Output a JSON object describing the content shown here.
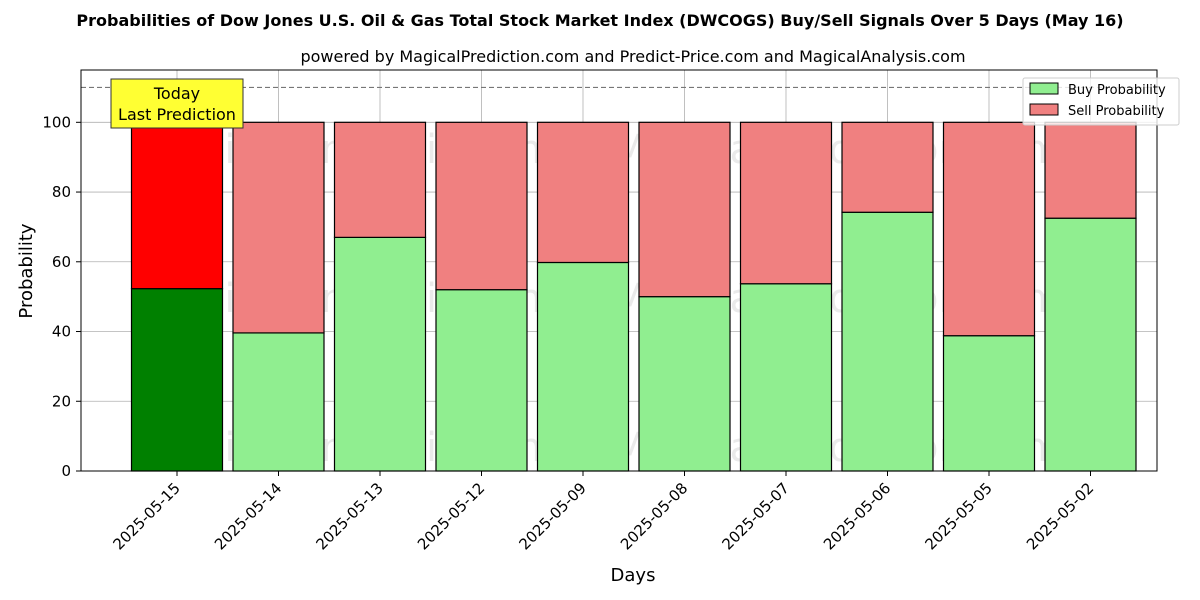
{
  "chart_data": {
    "type": "bar",
    "stacked": true,
    "title": "Probabilities of Dow Jones U.S. Oil & Gas Total Stock Market Index (DWCOGS) Buy/Sell Signals Over 5 Days (May 16)",
    "subtitle": "powered by MagicalPrediction.com and Predict-Price.com and MagicalAnalysis.com",
    "xlabel": "Days",
    "ylabel": "Probability",
    "ylim": [
      0,
      115
    ],
    "yticks": [
      0,
      20,
      40,
      60,
      80,
      100
    ],
    "reference_line": 110,
    "grid": true,
    "legend_position": "top-right",
    "categories": [
      "2025-05-15",
      "2025-05-14",
      "2025-05-13",
      "2025-05-12",
      "2025-05-09",
      "2025-05-08",
      "2025-05-07",
      "2025-05-06",
      "2025-05-05",
      "2025-05-02"
    ],
    "series": [
      {
        "name": "Buy Probability",
        "values": [
          52.3,
          39.6,
          67.0,
          52.0,
          59.8,
          50.0,
          53.7,
          74.2,
          38.8,
          72.5
        ],
        "color": "#90ee90",
        "highlight_color": "#008000"
      },
      {
        "name": "Sell Probability",
        "values": [
          47.7,
          60.4,
          33.0,
          48.0,
          40.2,
          50.0,
          46.3,
          25.8,
          61.2,
          27.5
        ],
        "color": "#f08080",
        "highlight_color": "#ff0000"
      }
    ],
    "annotation": {
      "lines": [
        "Today",
        "Last Prediction"
      ],
      "category": "2025-05-15",
      "color": "#ffff33"
    },
    "watermarks": [
      "MagicalAnalysis.com",
      "MagicalPrediction.com"
    ]
  }
}
